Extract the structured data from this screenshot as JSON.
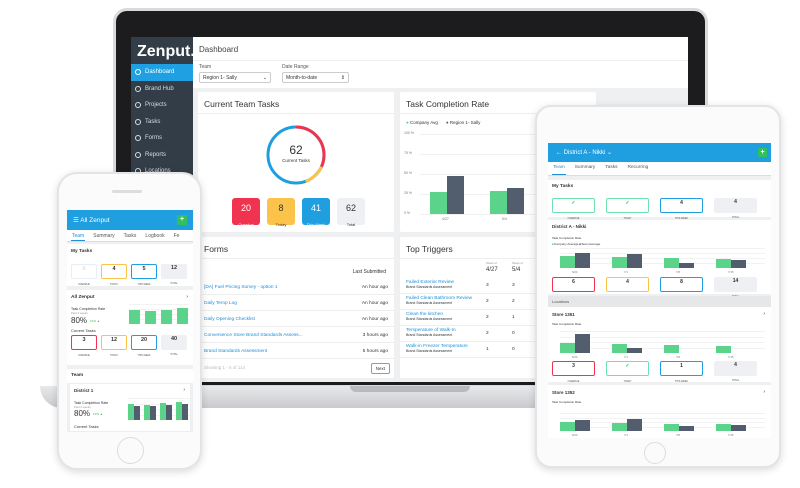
{
  "colors": {
    "accent": "#1fa0e3",
    "overdue": "#f0344f",
    "today": "#fbc34a",
    "week": "#1f9ee0",
    "green": "#5cd38b",
    "navy": "#525d6e"
  },
  "laptop": {
    "logo": "Zenput.",
    "sidebar": [
      {
        "label": "Dashboard",
        "icon": "dashboard-icon",
        "active": true
      },
      {
        "label": "Brand Hub",
        "icon": "circle-icon"
      },
      {
        "label": "Projects",
        "icon": "projects-icon"
      },
      {
        "label": "Tasks",
        "icon": "tasks-icon"
      },
      {
        "label": "Forms",
        "icon": "forms-icon"
      },
      {
        "label": "Reports",
        "icon": "reports-icon"
      },
      {
        "label": "Locations",
        "icon": "locations-icon"
      }
    ],
    "title": "Dashboard",
    "filters": {
      "team_label": "Team",
      "team_value": "Region 1- Sally",
      "date_label": "Date Range",
      "date_value": "Month-to-date"
    },
    "team_tasks": {
      "title": "Current Team Tasks",
      "total": "62",
      "total_label": "Current Tasks",
      "stats": [
        {
          "value": "20",
          "label": "Overdue"
        },
        {
          "value": "8",
          "label": "Today"
        },
        {
          "value": "41",
          "label": "This Week"
        },
        {
          "value": "62",
          "label": "Total"
        }
      ]
    },
    "completion": {
      "title": "Task Completion Rate",
      "chart_data": {
        "type": "bar",
        "categories": [
          "4/27",
          "5/4"
        ],
        "series": [
          {
            "name": "Company Avg",
            "values": [
              28,
              29
            ]
          },
          {
            "name": "Region 1- Sally",
            "values": [
              48,
              33
            ]
          }
        ],
        "yticks": [
          "100 %",
          "75 %",
          "50 %",
          "25 %",
          "0 %"
        ],
        "ylim": [
          0,
          100
        ],
        "legend": "top-left"
      }
    },
    "forms": {
      "title": "Forms",
      "column": "Last Submitted",
      "rows": [
        {
          "name": "[DA] Fuel Pricing Survey - option 1",
          "time": "An hour ago"
        },
        {
          "name": "Daily Temp Log",
          "time": "An hour ago"
        },
        {
          "name": "Daily Opening Checklist",
          "time": "An hour ago"
        },
        {
          "name": "Convenience Store Brand Standards Assess...",
          "time": "3 hours ago"
        },
        {
          "name": "Brand Standards Assessment",
          "time": "5 hours ago"
        }
      ],
      "showing": "Showing 1 - 5 of 114",
      "next": "Next"
    },
    "triggers": {
      "title": "Top Triggers",
      "week_label": "Week of",
      "cols": [
        "4/27",
        "5/4"
      ],
      "rows": [
        {
          "name": "Failed Exterior Review",
          "sub": "Brand Standards Assessment",
          "v": [
            "3",
            "3"
          ]
        },
        {
          "name": "Failed Clean Bathroom Review",
          "sub": "Brand Standards Assessment",
          "v": [
            "2",
            "2"
          ]
        },
        {
          "name": "Clean the kitchen",
          "sub": "Brand Standards Assessment",
          "v": [
            "2",
            "1"
          ]
        },
        {
          "name": "Temperature of Walk-In",
          "sub": "Brand Standards Assessment",
          "v": [
            "2",
            "0"
          ]
        },
        {
          "name": "Walk-in Freezer Temperature",
          "sub": "Brand Standards Assessment",
          "v": [
            "1",
            "0"
          ]
        }
      ]
    }
  },
  "phone": {
    "title": "All Zenput",
    "tabs": [
      "Team",
      "Summary",
      "Tasks",
      "Logbook",
      "Fe"
    ],
    "my_tasks": {
      "title": "My Tasks",
      "boxes": [
        {
          "value": "0",
          "label": "OVERDUE"
        },
        {
          "value": "4",
          "label": "TODAY"
        },
        {
          "value": "5",
          "label": "THIS WEEK"
        },
        {
          "value": "12",
          "label": "TOTAL"
        }
      ]
    },
    "all": {
      "title": "All Zenput",
      "rate_label": "Task Completion Rate",
      "rate_sub": "Past 4 weeks",
      "rate": "80%",
      "delta": "10% ▲",
      "current_label": "Current Tasks",
      "bars": [
        [
          70
        ],
        [
          65
        ],
        [
          72
        ],
        [
          80
        ]
      ],
      "boxes": [
        {
          "value": "3",
          "label": "OVERDUE"
        },
        {
          "value": "12",
          "label": "TODAY"
        },
        {
          "value": "20",
          "label": "THIS WEEK"
        },
        {
          "value": "40",
          "label": "TOTAL"
        }
      ]
    },
    "team_title": "Team",
    "district": {
      "title": "District 1",
      "rate_label": "Task Completion Rate",
      "rate_sub": "Past 4 weeks",
      "rate": "80%",
      "delta": "10% ▲",
      "current_label": "Current Tasks",
      "bars": [
        [
          75,
          65
        ],
        [
          70,
          62
        ],
        [
          78,
          70
        ],
        [
          82,
          75
        ]
      ]
    }
  },
  "tablet": {
    "title": "District A - Nikki",
    "tabs": [
      "Team",
      "Summary",
      "Tasks",
      "Recurring"
    ],
    "my_tasks": {
      "title": "My Tasks",
      "boxes": [
        {
          "value": "✓",
          "label": "OVERDUE"
        },
        {
          "value": "✓",
          "label": "TODAY"
        },
        {
          "value": "4",
          "label": "THIS WEEK"
        },
        {
          "value": "4",
          "label": "TOTAL"
        }
      ]
    },
    "district": {
      "title": "District A - Nikki",
      "rate_label": "Task Completion Rate",
      "legend": [
        "Company Average",
        "Team Average"
      ],
      "cats": [
        "6/24",
        "7/1",
        "7/8",
        "7/15"
      ],
      "bars": [
        [
          60,
          75
        ],
        [
          55,
          70
        ],
        [
          50,
          25
        ],
        [
          45,
          40
        ]
      ],
      "boxes": [
        {
          "value": "6",
          "label": "OVERDUE"
        },
        {
          "value": "4",
          "label": "TODAY"
        },
        {
          "value": "8",
          "label": "THIS WEEK"
        },
        {
          "value": "14",
          "label": "TOTAL"
        }
      ]
    },
    "locations_label": "Locations",
    "store1": {
      "title": "Store 1351",
      "rate_label": "Task Completion Rate",
      "cats": [
        "6/24",
        "7/1",
        "7/8",
        "7/15"
      ],
      "bars": [
        [
          45,
          85
        ],
        [
          40,
          25
        ],
        [
          35,
          0
        ],
        [
          33,
          0
        ]
      ],
      "boxes": [
        {
          "value": "3",
          "label": "OVERDUE"
        },
        {
          "value": "✓",
          "label": "TODAY"
        },
        {
          "value": "1",
          "label": "THIS WEEK"
        },
        {
          "value": "4",
          "label": "TOTAL"
        }
      ]
    },
    "store2": {
      "title": "Store 1352",
      "rate_label": "Task Completion Rate",
      "cats": [
        "6/24",
        "7/1",
        "7/8",
        "7/15"
      ],
      "bars": [
        [
          50,
          60
        ],
        [
          45,
          65
        ],
        [
          40,
          30
        ],
        [
          38,
          35
        ]
      ]
    }
  }
}
